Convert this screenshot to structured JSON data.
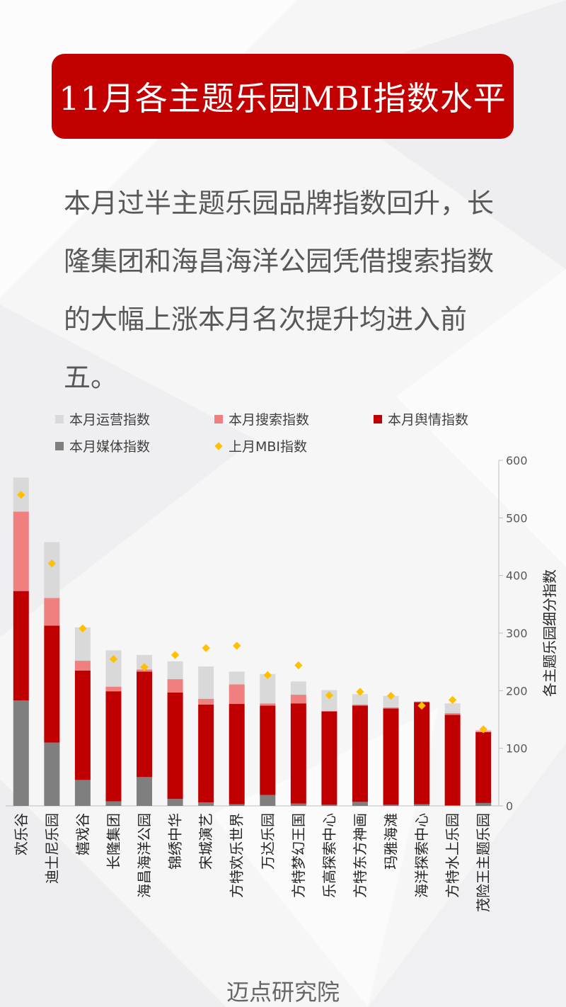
{
  "page": {
    "title": "11月各主题乐园MBI指数水平",
    "intro": "本月过半主题乐园品牌指数回升，长隆集团和海昌海洋公园凭借搜索指数的大幅上涨本月名次提升均进入前五。",
    "footer": "迈点研究院"
  },
  "colors": {
    "banner": "#c30000",
    "operation": "#d9d9d9",
    "search": "#f08080",
    "sentiment": "#c00000",
    "media": "#7f7f7f",
    "last_month": "#ffc000"
  },
  "chart_data": {
    "type": "bar",
    "stacked": true,
    "ylabel": "各主题乐园细分指数",
    "y_axis_side": "right",
    "ylim": [
      0,
      600
    ],
    "yticks": [
      0,
      100,
      200,
      300,
      400,
      500,
      600
    ],
    "legend_position": "top",
    "categories": [
      "欢乐谷",
      "迪士尼乐园",
      "嬉戏谷",
      "长隆集团",
      "海昌海洋公园",
      "锦绣中华",
      "宋城演艺",
      "方特欢乐世界",
      "万达乐园",
      "方特梦幻王国",
      "乐高探索中心",
      "方特东方神画",
      "玛雅海滩",
      "海洋探索中心",
      "方特水上乐园",
      "茂险王主题乐园"
    ],
    "series": [
      {
        "name": "本月媒体指数",
        "kind": "bar",
        "values": [
          183,
          110,
          45,
          8,
          50,
          12,
          6,
          3,
          19,
          4,
          2,
          7,
          2,
          3,
          1,
          5
        ]
      },
      {
        "name": "本月舆情指数",
        "kind": "bar",
        "values": [
          190,
          203,
          190,
          191,
          183,
          185,
          170,
          174,
          155,
          174,
          162,
          167,
          167,
          177,
          157,
          123
        ]
      },
      {
        "name": "本月搜索指数",
        "kind": "bar",
        "values": [
          138,
          48,
          17,
          8,
          4,
          23,
          10,
          34,
          4,
          15,
          1,
          2,
          2,
          1,
          3,
          2
        ]
      },
      {
        "name": "本月运营指数",
        "kind": "bar",
        "values": [
          59,
          97,
          58,
          63,
          25,
          31,
          56,
          22,
          51,
          23,
          36,
          18,
          20,
          1,
          17,
          2
        ]
      },
      {
        "name": "上月MBI指数",
        "kind": "marker",
        "values": [
          540,
          421,
          308,
          255,
          241,
          262,
          274,
          278,
          227,
          244,
          192,
          198,
          191,
          174,
          184,
          133
        ]
      }
    ]
  },
  "legend": {
    "items": [
      {
        "label": "本月运营指数",
        "key": "operation",
        "shape": "square"
      },
      {
        "label": "本月搜索指数",
        "key": "search",
        "shape": "square"
      },
      {
        "label": "本月舆情指数",
        "key": "sentiment",
        "shape": "square"
      },
      {
        "label": "本月媒体指数",
        "key": "media",
        "shape": "square"
      },
      {
        "label": "上月MBI指数",
        "key": "last_month",
        "shape": "diamond"
      }
    ]
  }
}
